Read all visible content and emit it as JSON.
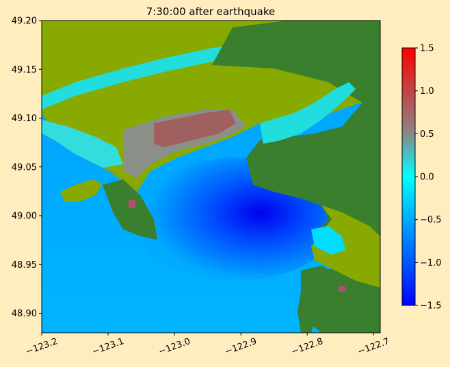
{
  "chart_data": {
    "type": "heatmap",
    "title": "7:30:00 after earthquake",
    "xlabel": "",
    "ylabel": "",
    "x_range": [
      -123.2,
      -122.69
    ],
    "y_range": [
      48.88,
      49.2
    ],
    "x_ticks": [
      {
        "value": -123.2,
        "label": "−123.2"
      },
      {
        "value": -123.1,
        "label": "−123.1"
      },
      {
        "value": -123.0,
        "label": "−123.0"
      },
      {
        "value": -122.9,
        "label": "−122.9"
      },
      {
        "value": -122.8,
        "label": "−122.8"
      },
      {
        "value": -122.7,
        "label": "−122.7"
      }
    ],
    "y_ticks": [
      {
        "value": 48.9,
        "label": "48.90"
      },
      {
        "value": 48.95,
        "label": "48.95"
      },
      {
        "value": 49.0,
        "label": "49.00"
      },
      {
        "value": 49.05,
        "label": "49.05"
      },
      {
        "value": 49.1,
        "label": "49.10"
      },
      {
        "value": 49.15,
        "label": "49.15"
      },
      {
        "value": 49.2,
        "label": "49.20"
      }
    ],
    "colorbar": {
      "range": [
        -1.5,
        1.5
      ],
      "colors": [
        "#0000ff",
        "#00aaff",
        "#00ffff",
        "#888888",
        "#ff0000"
      ],
      "ticks": [
        {
          "value": 1.5,
          "label": "1.5"
        },
        {
          "value": 1.0,
          "label": "1.0"
        },
        {
          "value": 0.5,
          "label": "0.5"
        },
        {
          "value": 0.0,
          "label": "0.0"
        },
        {
          "value": -0.5,
          "label": "−0.5"
        },
        {
          "value": -1.0,
          "label": "−1.0"
        },
        {
          "value": -1.5,
          "label": "−1.5"
        }
      ]
    },
    "land_colors": {
      "dry_land": "#3a7f2e",
      "lowland": "#88aa00"
    },
    "grid": false
  }
}
